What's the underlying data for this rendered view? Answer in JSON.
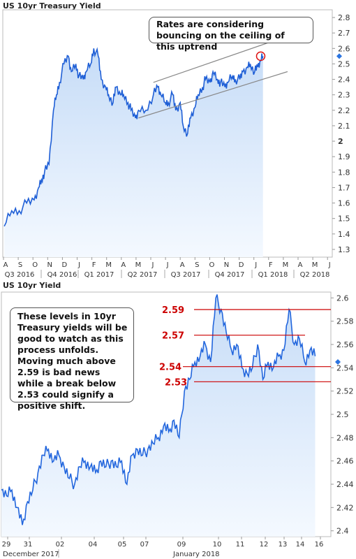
{
  "charts": {
    "top": {
      "title": "US 10yr Treasury Yield",
      "callout": "Rates are considering bouncing on the ceiling of this uptrend",
      "current_marker_value": 2.55
    },
    "bottom": {
      "title": "US 10yr Yield",
      "callout": "These levels in 10yr Treasury yields will be good to watch as this process unfolds.  Moving much above 2.59 is bad news while a break below 2.53 could signify a positive shift.",
      "current_marker_value": 2.545
    }
  },
  "chart_data": [
    {
      "type": "area",
      "title": "US 10yr Treasury Yield",
      "xlabel": "",
      "ylabel": "",
      "ylim": [
        1.25,
        2.85
      ],
      "y_ticks": [
        "1.3",
        "1.4",
        "1.5",
        "1.6",
        "1.7",
        "1.8",
        "1.9",
        "2",
        "2.1",
        "2.2",
        "2.3",
        "2.4",
        "2.5",
        "2.6",
        "2.7",
        "2.8"
      ],
      "bold_y_tick": "2",
      "month_ticks": [
        "A",
        "S",
        "O",
        "N",
        "D",
        "J",
        "F",
        "M",
        "A",
        "M",
        "J",
        "J",
        "A",
        "S",
        "O",
        "N",
        "D",
        "J",
        "F",
        "M",
        "A",
        "M",
        "J"
      ],
      "quarter_labels": [
        "Q3 2016",
        "Q4 2016",
        "Q1 2017",
        "Q2 2017",
        "Q3 2017",
        "Q4 2017",
        "Q1 2018",
        "Q2 2018"
      ],
      "x_units": "months since 2016-07-01",
      "series": [
        {
          "x": [
            1.0,
            1.5,
            2.0,
            2.5,
            3.0,
            3.3,
            3.5,
            3.7,
            4.0,
            4.3,
            4.5,
            4.7,
            5.0,
            5.3,
            5.5,
            5.8,
            6.0,
            6.3,
            6.5,
            6.8,
            7.0,
            7.3,
            7.5,
            7.8,
            8.0,
            8.3,
            8.5,
            8.8,
            9.0,
            9.3,
            9.5,
            9.8,
            10.0,
            10.5,
            11.0,
            11.3,
            11.5,
            11.8,
            12.0,
            12.3,
            12.5,
            12.8,
            13.0,
            13.3,
            13.5,
            13.8,
            14.0,
            14.3,
            14.5,
            14.8,
            15.0,
            15.3,
            15.5,
            15.8,
            16.0,
            16.3,
            16.5,
            16.8,
            17.0,
            17.3,
            17.5,
            17.8,
            18.0,
            18.2,
            18.35
          ],
          "y": [
            1.45,
            1.55,
            1.55,
            1.6,
            1.62,
            1.7,
            1.75,
            1.8,
            1.85,
            2.2,
            2.3,
            2.38,
            2.5,
            2.55,
            2.45,
            2.5,
            2.42,
            2.4,
            2.45,
            2.5,
            2.6,
            2.55,
            2.4,
            2.35,
            2.3,
            2.25,
            2.35,
            2.3,
            2.3,
            2.25,
            2.2,
            2.15,
            2.2,
            2.2,
            2.3,
            2.35,
            2.3,
            2.25,
            2.25,
            2.3,
            2.2,
            2.25,
            2.1,
            2.05,
            2.15,
            2.22,
            2.3,
            2.35,
            2.4,
            2.38,
            2.45,
            2.4,
            2.38,
            2.35,
            2.38,
            2.42,
            2.4,
            2.4,
            2.45,
            2.48,
            2.5,
            2.45,
            2.48,
            2.52,
            2.55
          ]
        }
      ],
      "trend_channel": [
        {
          "from": [
            11.0,
            2.38
          ],
          "to": [
            18.8,
            2.64
          ]
        },
        {
          "from": [
            10.0,
            2.15
          ],
          "to": [
            20.0,
            2.45
          ]
        }
      ],
      "highlight_point": {
        "x": 18.2,
        "y": 2.55
      }
    },
    {
      "type": "area",
      "title": "US 10yr Yield",
      "xlabel": "",
      "ylabel": "",
      "ylim": [
        2.395,
        2.605
      ],
      "y_ticks": [
        "2.4",
        "2.42",
        "2.44",
        "2.46",
        "2.48",
        "2.5",
        "2.52",
        "2.54",
        "2.56",
        "2.58",
        "2.6"
      ],
      "x_ticks": [
        "29",
        "31",
        "02",
        "04",
        "05",
        "07",
        "09",
        "10",
        "11",
        "12",
        "13",
        "14",
        "16"
      ],
      "period_labels": [
        "December 2017",
        "January 2018"
      ],
      "x_units": "trading-session index",
      "series": [
        {
          "x": [
            0,
            0.2,
            0.4,
            0.6,
            0.8,
            1.0,
            1.2,
            1.4,
            1.6,
            1.8,
            2.0,
            2.2,
            2.4,
            2.6,
            2.8,
            3.0,
            3.2,
            3.4,
            3.6,
            3.8,
            4.0,
            4.2,
            4.4,
            4.6,
            4.8,
            5.0,
            5.2,
            5.4,
            5.6,
            5.8,
            6.0,
            6.2,
            6.4,
            6.6,
            6.8,
            7.0,
            7.2,
            7.4,
            7.6,
            7.8,
            8.0,
            8.2,
            8.4,
            8.6,
            8.8,
            9.0,
            9.2,
            9.4,
            9.6,
            9.8,
            10.0,
            10.2,
            10.4,
            10.6,
            10.8,
            11.0,
            11.2,
            11.4,
            11.6,
            11.8,
            12.0
          ],
          "y": [
            2.435,
            2.43,
            2.435,
            2.42,
            2.405,
            2.425,
            2.435,
            2.45,
            2.465,
            2.47,
            2.46,
            2.465,
            2.455,
            2.445,
            2.44,
            2.455,
            2.46,
            2.455,
            2.45,
            2.46,
            2.455,
            2.46,
            2.455,
            2.46,
            2.44,
            2.465,
            2.47,
            2.465,
            2.47,
            2.475,
            2.48,
            2.49,
            2.485,
            2.495,
            2.48,
            2.52,
            2.53,
            2.545,
            2.55,
            2.56,
            2.545,
            2.6,
            2.59,
            2.57,
            2.555,
            2.56,
            2.54,
            2.535,
            2.54,
            2.56,
            2.53,
            2.545,
            2.54,
            2.55,
            2.555,
            2.59,
            2.56,
            2.565,
            2.545,
            2.555,
            2.55
          ]
        }
      ],
      "reference_levels": [
        {
          "label": "2.59",
          "value": 2.59
        },
        {
          "label": "2.57",
          "value": 2.568
        },
        {
          "label": "2.54",
          "value": 2.541
        },
        {
          "label": "2.53",
          "value": 2.528
        }
      ],
      "level_color": "#cc0000",
      "line_color": "#2266dd",
      "fill_color": "#d8e8fa"
    }
  ]
}
